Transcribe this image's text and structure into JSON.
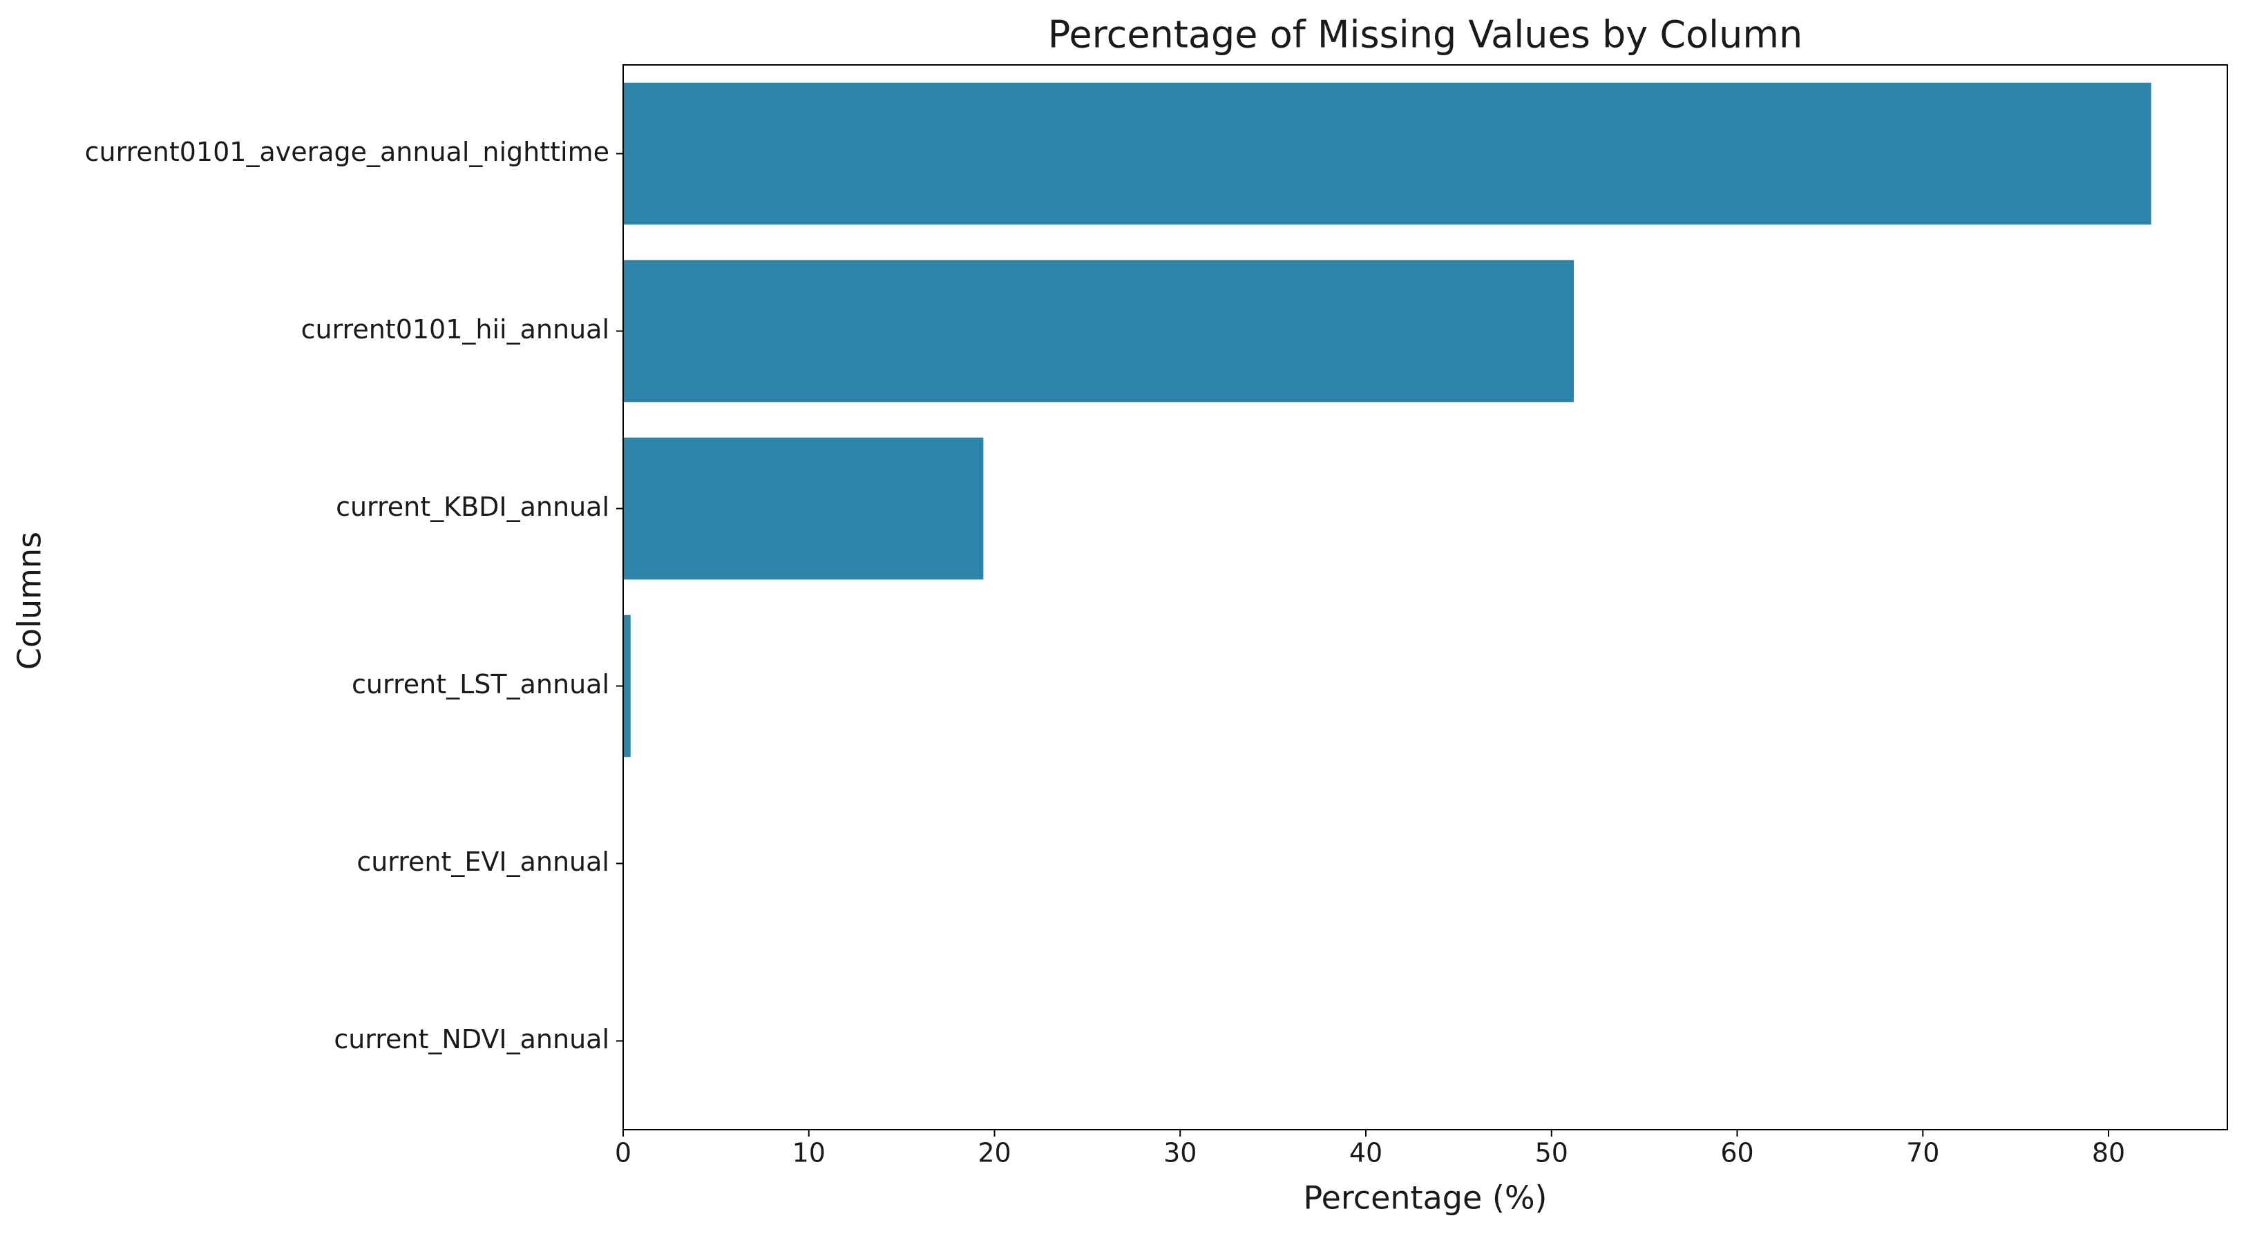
{
  "chart_data": {
    "type": "bar",
    "orientation": "horizontal",
    "title": "Percentage of Missing Values by Column",
    "x_label": "Percentage (%)",
    "y_label": "Columns",
    "categories": [
      "current0101_average_annual_nighttime",
      "current0101_hii_annual",
      "current_KBDI_annual",
      "current_LST_annual",
      "current_EVI_annual",
      "current_NDVI_annual"
    ],
    "values": [
      82.3,
      51.2,
      19.4,
      0.4,
      0,
      0
    ],
    "color": "#2e83aa",
    "xlim": [
      0,
      86.4
    ],
    "xticks": [
      0,
      10,
      20,
      30,
      40,
      50,
      60,
      70,
      80
    ],
    "grid": false
  }
}
